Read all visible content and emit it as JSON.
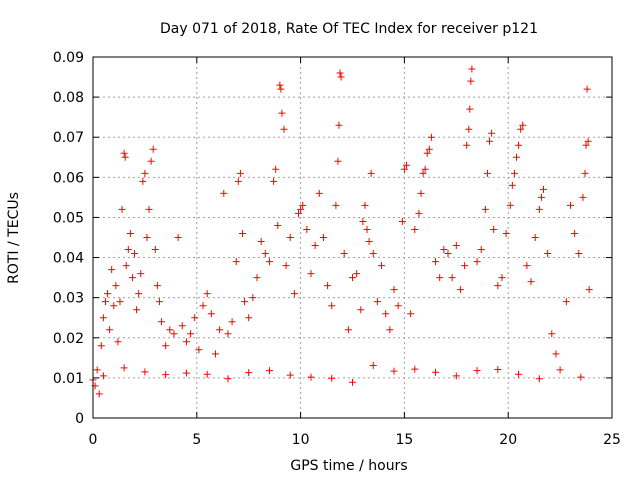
{
  "chart_data": {
    "type": "scatter",
    "title": "Day 071 of 2018, Rate Of TEC Index for receiver p121",
    "xlabel": "GPS time / hours",
    "ylabel": "ROTI / TECUs",
    "xlim": [
      0,
      25
    ],
    "ylim": [
      0,
      0.09
    ],
    "x_ticks": [
      0,
      5,
      10,
      15,
      20,
      25
    ],
    "y_ticks": [
      0,
      0.01,
      0.02,
      0.03,
      0.04,
      0.05,
      0.06,
      0.07,
      0.08,
      0.09
    ],
    "x_tick_labels": [
      "0",
      "5",
      "10",
      "15",
      "20",
      "25"
    ],
    "y_tick_labels": [
      "0",
      "0.01",
      "0.02",
      "0.03",
      "0.04",
      "0.05",
      "0.06",
      "0.07",
      "0.08",
      "0.09"
    ],
    "grid": true,
    "marker": "+",
    "color": "#ff0000",
    "series": [
      {
        "points": [
          [
            0.0,
            0.0095
          ],
          [
            0.1,
            0.008
          ],
          [
            0.2,
            0.012
          ],
          [
            0.3,
            0.006
          ],
          [
            0.4,
            0.018
          ],
          [
            0.5,
            0.025
          ],
          [
            0.6,
            0.029
          ],
          [
            0.7,
            0.031
          ],
          [
            0.8,
            0.022
          ],
          [
            0.9,
            0.037
          ],
          [
            1.0,
            0.028
          ],
          [
            1.1,
            0.033
          ],
          [
            1.2,
            0.019
          ],
          [
            1.3,
            0.029
          ],
          [
            1.4,
            0.052
          ],
          [
            1.5,
            0.066
          ],
          [
            1.55,
            0.065
          ],
          [
            1.6,
            0.038
          ],
          [
            1.7,
            0.042
          ],
          [
            1.8,
            0.046
          ],
          [
            1.9,
            0.035
          ],
          [
            2.0,
            0.041
          ],
          [
            2.1,
            0.027
          ],
          [
            2.2,
            0.031
          ],
          [
            2.3,
            0.036
          ],
          [
            2.4,
            0.059
          ],
          [
            2.5,
            0.061
          ],
          [
            2.6,
            0.045
          ],
          [
            2.7,
            0.052
          ],
          [
            2.8,
            0.064
          ],
          [
            2.9,
            0.067
          ],
          [
            3.0,
            0.042
          ],
          [
            3.1,
            0.033
          ],
          [
            3.2,
            0.029
          ],
          [
            3.3,
            0.024
          ],
          [
            3.5,
            0.018
          ],
          [
            3.7,
            0.022
          ],
          [
            3.9,
            0.021
          ],
          [
            4.1,
            0.045
          ],
          [
            4.3,
            0.023
          ],
          [
            4.5,
            0.019
          ],
          [
            4.7,
            0.021
          ],
          [
            4.9,
            0.025
          ],
          [
            5.1,
            0.017
          ],
          [
            5.3,
            0.028
          ],
          [
            5.5,
            0.031
          ],
          [
            5.7,
            0.026
          ],
          [
            5.9,
            0.016
          ],
          [
            6.1,
            0.022
          ],
          [
            6.3,
            0.056
          ],
          [
            6.5,
            0.021
          ],
          [
            6.7,
            0.024
          ],
          [
            6.9,
            0.039
          ],
          [
            7.0,
            0.059
          ],
          [
            7.1,
            0.061
          ],
          [
            7.2,
            0.046
          ],
          [
            7.3,
            0.029
          ],
          [
            7.5,
            0.025
          ],
          [
            7.7,
            0.03
          ],
          [
            7.9,
            0.035
          ],
          [
            8.1,
            0.044
          ],
          [
            8.3,
            0.041
          ],
          [
            8.5,
            0.039
          ],
          [
            8.7,
            0.059
          ],
          [
            8.8,
            0.062
          ],
          [
            8.9,
            0.048
          ],
          [
            9.0,
            0.083
          ],
          [
            9.05,
            0.082
          ],
          [
            9.1,
            0.076
          ],
          [
            9.2,
            0.072
          ],
          [
            9.3,
            0.038
          ],
          [
            9.5,
            0.045
          ],
          [
            9.7,
            0.031
          ],
          [
            9.9,
            0.051
          ],
          [
            10.0,
            0.052
          ],
          [
            10.1,
            0.053
          ],
          [
            10.3,
            0.047
          ],
          [
            10.5,
            0.036
          ],
          [
            10.7,
            0.043
          ],
          [
            10.9,
            0.056
          ],
          [
            11.1,
            0.045
          ],
          [
            11.3,
            0.033
          ],
          [
            11.5,
            0.028
          ],
          [
            11.7,
            0.053
          ],
          [
            11.8,
            0.064
          ],
          [
            11.85,
            0.073
          ],
          [
            11.9,
            0.086
          ],
          [
            11.95,
            0.085
          ],
          [
            12.1,
            0.041
          ],
          [
            12.3,
            0.022
          ],
          [
            12.5,
            0.035
          ],
          [
            12.7,
            0.036
          ],
          [
            12.9,
            0.027
          ],
          [
            13.0,
            0.049
          ],
          [
            13.1,
            0.053
          ],
          [
            13.2,
            0.047
          ],
          [
            13.3,
            0.044
          ],
          [
            13.4,
            0.061
          ],
          [
            13.5,
            0.041
          ],
          [
            13.7,
            0.029
          ],
          [
            13.9,
            0.038
          ],
          [
            14.1,
            0.026
          ],
          [
            14.3,
            0.022
          ],
          [
            14.5,
            0.032
          ],
          [
            14.7,
            0.028
          ],
          [
            14.9,
            0.049
          ],
          [
            15.0,
            0.062
          ],
          [
            15.1,
            0.063
          ],
          [
            15.3,
            0.026
          ],
          [
            15.5,
            0.047
          ],
          [
            15.7,
            0.051
          ],
          [
            15.8,
            0.056
          ],
          [
            15.9,
            0.061
          ],
          [
            16.0,
            0.062
          ],
          [
            16.1,
            0.066
          ],
          [
            16.2,
            0.067
          ],
          [
            16.3,
            0.07
          ],
          [
            16.5,
            0.039
          ],
          [
            16.7,
            0.035
          ],
          [
            16.9,
            0.042
          ],
          [
            17.1,
            0.041
          ],
          [
            17.3,
            0.035
          ],
          [
            17.5,
            0.043
          ],
          [
            17.7,
            0.032
          ],
          [
            17.9,
            0.038
          ],
          [
            18.0,
            0.068
          ],
          [
            18.1,
            0.072
          ],
          [
            18.15,
            0.077
          ],
          [
            18.2,
            0.084
          ],
          [
            18.25,
            0.087
          ],
          [
            18.5,
            0.039
          ],
          [
            18.7,
            0.042
          ],
          [
            18.9,
            0.052
          ],
          [
            19.0,
            0.061
          ],
          [
            19.1,
            0.069
          ],
          [
            19.2,
            0.071
          ],
          [
            19.3,
            0.047
          ],
          [
            19.5,
            0.033
          ],
          [
            19.7,
            0.035
          ],
          [
            19.9,
            0.046
          ],
          [
            20.1,
            0.053
          ],
          [
            20.2,
            0.058
          ],
          [
            20.3,
            0.061
          ],
          [
            20.4,
            0.065
          ],
          [
            20.5,
            0.068
          ],
          [
            20.6,
            0.072
          ],
          [
            20.7,
            0.073
          ],
          [
            20.9,
            0.038
          ],
          [
            21.1,
            0.034
          ],
          [
            21.3,
            0.045
          ],
          [
            21.5,
            0.052
          ],
          [
            21.6,
            0.055
          ],
          [
            21.7,
            0.057
          ],
          [
            21.9,
            0.041
          ],
          [
            22.1,
            0.021
          ],
          [
            22.3,
            0.016
          ],
          [
            22.5,
            0.012
          ],
          [
            22.8,
            0.029
          ],
          [
            23.0,
            0.053
          ],
          [
            23.2,
            0.046
          ],
          [
            23.4,
            0.041
          ],
          [
            23.6,
            0.055
          ],
          [
            23.7,
            0.061
          ],
          [
            23.75,
            0.068
          ],
          [
            23.8,
            0.082
          ],
          [
            23.85,
            0.069
          ],
          [
            23.9,
            0.032
          ],
          [
            0.5,
            0.0105
          ],
          [
            1.5,
            0.0125
          ],
          [
            2.5,
            0.0115
          ],
          [
            3.5,
            0.0108
          ],
          [
            4.5,
            0.0112
          ],
          [
            5.5,
            0.0109
          ],
          [
            6.5,
            0.0098
          ],
          [
            7.5,
            0.0113
          ],
          [
            8.5,
            0.0118
          ],
          [
            9.5,
            0.0107
          ],
          [
            10.5,
            0.0102
          ],
          [
            11.5,
            0.0099
          ],
          [
            12.5,
            0.0089
          ],
          [
            13.5,
            0.0131
          ],
          [
            14.5,
            0.0117
          ],
          [
            15.5,
            0.0122
          ],
          [
            16.5,
            0.0114
          ],
          [
            17.5,
            0.0105
          ],
          [
            18.5,
            0.0118
          ],
          [
            19.5,
            0.0121
          ],
          [
            20.5,
            0.0109
          ],
          [
            21.5,
            0.0098
          ],
          [
            23.5,
            0.0102
          ]
        ]
      }
    ]
  }
}
